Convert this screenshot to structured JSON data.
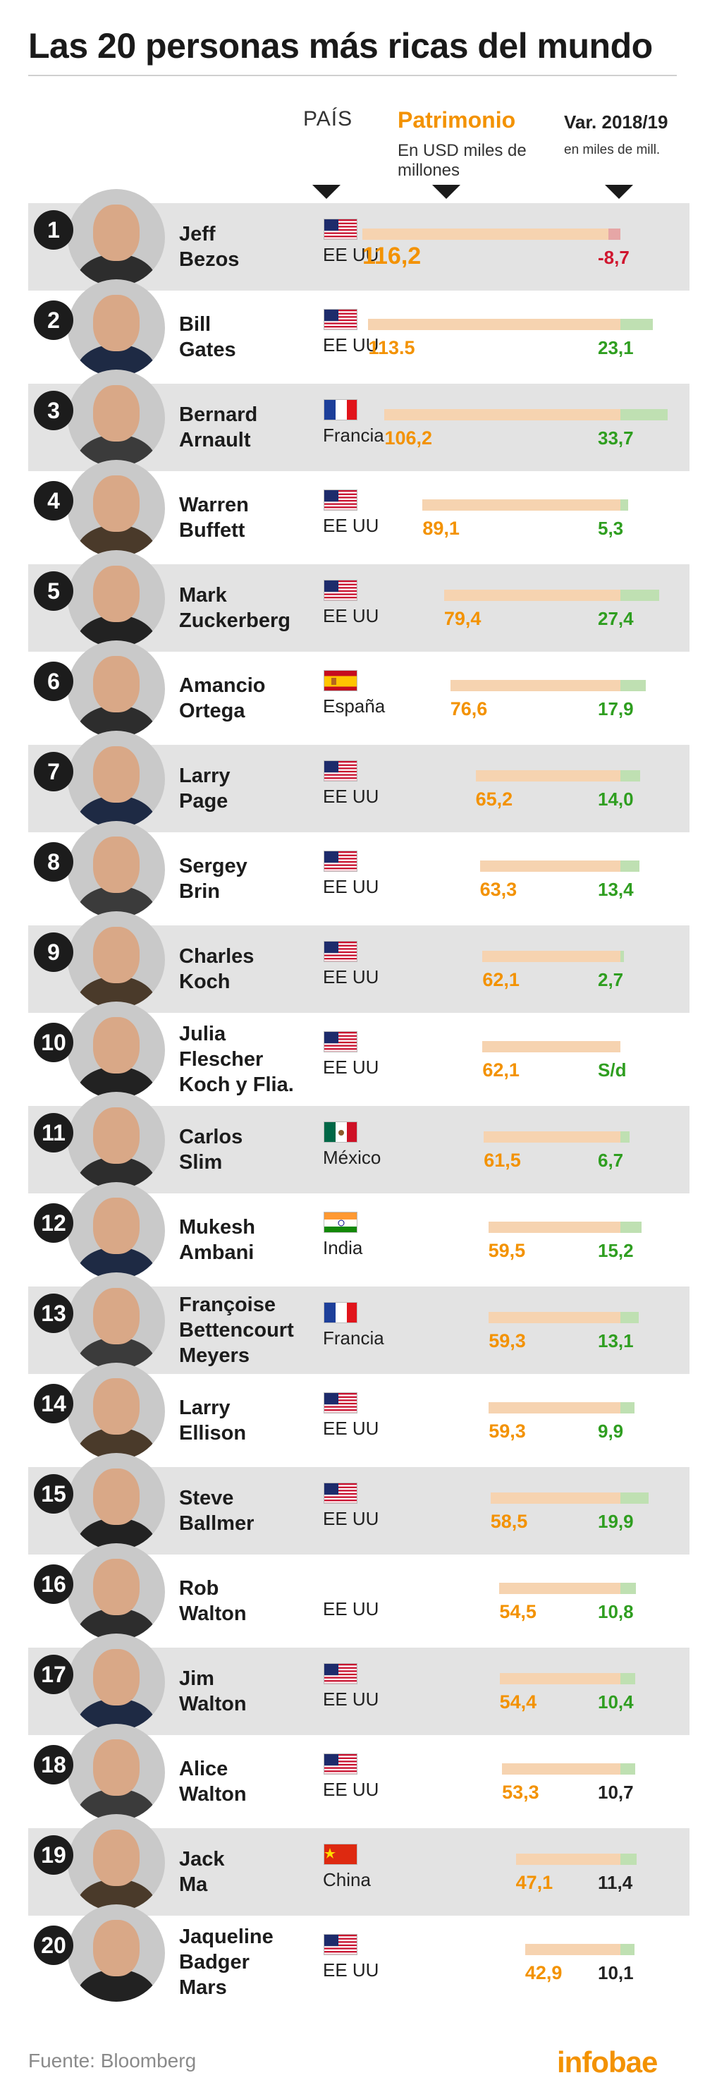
{
  "title": "Las 20 personas más ricas del mundo",
  "headers": {
    "country": "PAÍS",
    "net_worth": "Patrimonio",
    "net_worth_sub": "En USD miles de millones",
    "variation": "Var. 2018/19",
    "variation_sub": "en miles de mill."
  },
  "colors": {
    "accent": "#f39200",
    "positive": "#2f9e20",
    "negative": "#d0162f",
    "neutral": "#222222",
    "bar_net": "#f6d3b0",
    "bar_pos": "#bfe0b2",
    "bar_neg": "#e6a6a6",
    "row_shade": "#e3e3e3"
  },
  "chart_data": {
    "type": "bar",
    "title": "Las 20 personas más ricas del mundo",
    "series": [
      {
        "name": "Patrimonio",
        "unit": "USD miles de millones"
      },
      {
        "name": "Var. 2018/19",
        "unit": "miles de mill."
      }
    ],
    "rows": [
      {
        "rank": "1",
        "name": "Jeff\nBezos",
        "country": "EE UU",
        "flag": "us",
        "net_label": "116,2",
        "net": 116.2,
        "var_label": "-8,7",
        "var": -8.7,
        "var_color": "negative"
      },
      {
        "rank": "2",
        "name": "Bill\nGates",
        "country": "EE UU",
        "flag": "us",
        "net_label": "113.5",
        "net": 113.5,
        "var_label": "23,1",
        "var": 23.1,
        "var_color": "positive"
      },
      {
        "rank": "3",
        "name": "Bernard\nArnault",
        "country": "Francia",
        "flag": "fr",
        "net_label": "106,2",
        "net": 106.2,
        "var_label": "33,7",
        "var": 33.7,
        "var_color": "positive"
      },
      {
        "rank": "4",
        "name": "Warren\nBuffett",
        "country": "EE UU",
        "flag": "us",
        "net_label": "89,1",
        "net": 89.1,
        "var_label": "5,3",
        "var": 5.3,
        "var_color": "positive"
      },
      {
        "rank": "5",
        "name": "Mark\nZuckerberg",
        "country": "EE UU",
        "flag": "us",
        "net_label": "79,4",
        "net": 79.4,
        "var_label": "27,4",
        "var": 27.4,
        "var_color": "positive"
      },
      {
        "rank": "6",
        "name": "Amancio\nOrtega",
        "country": "España",
        "flag": "es",
        "net_label": "76,6",
        "net": 76.6,
        "var_label": "17,9",
        "var": 17.9,
        "var_color": "positive"
      },
      {
        "rank": "7",
        "name": "Larry\nPage",
        "country": "EE UU",
        "flag": "us",
        "net_label": "65,2",
        "net": 65.2,
        "var_label": "14,0",
        "var": 14.0,
        "var_color": "positive"
      },
      {
        "rank": "8",
        "name": "Sergey\nBrin",
        "country": "EE UU",
        "flag": "us",
        "net_label": "63,3",
        "net": 63.3,
        "var_label": "13,4",
        "var": 13.4,
        "var_color": "positive"
      },
      {
        "rank": "9",
        "name": "Charles\nKoch",
        "country": "EE UU",
        "flag": "us",
        "net_label": "62,1",
        "net": 62.1,
        "var_label": "2,7",
        "var": 2.7,
        "var_color": "positive"
      },
      {
        "rank": "10",
        "name": "Julia\nFlescher\nKoch y Flia.",
        "country": "EE UU",
        "flag": "us",
        "net_label": "62,1",
        "net": 62.1,
        "var_label": "S/d",
        "var": null,
        "var_color": "positive"
      },
      {
        "rank": "11",
        "name": "Carlos\nSlim",
        "country": "México",
        "flag": "mx",
        "net_label": "61,5",
        "net": 61.5,
        "var_label": "6,7",
        "var": 6.7,
        "var_color": "positive"
      },
      {
        "rank": "12",
        "name": "Mukesh\nAmbani",
        "country": "India",
        "flag": "in",
        "net_label": "59,5",
        "net": 59.5,
        "var_label": "15,2",
        "var": 15.2,
        "var_color": "positive"
      },
      {
        "rank": "13",
        "name": "Françoise\nBettencourt\nMeyers",
        "country": "Francia",
        "flag": "fr",
        "net_label": "59,3",
        "net": 59.3,
        "var_label": "13,1",
        "var": 13.1,
        "var_color": "positive"
      },
      {
        "rank": "14",
        "name": "Larry\nEllison",
        "country": "EE UU",
        "flag": "us",
        "net_label": "59,3",
        "net": 59.3,
        "var_label": "9,9",
        "var": 9.9,
        "var_color": "positive"
      },
      {
        "rank": "15",
        "name": "Steve\nBallmer",
        "country": "EE UU",
        "flag": "us",
        "net_label": "58,5",
        "net": 58.5,
        "var_label": "19,9",
        "var": 19.9,
        "var_color": "positive"
      },
      {
        "rank": "16",
        "name": "Rob\nWalton",
        "country": "EE UU",
        "flag": "none",
        "net_label": "54,5",
        "net": 54.5,
        "var_label": "10,8",
        "var": 10.8,
        "var_color": "positive"
      },
      {
        "rank": "17",
        "name": "Jim\nWalton",
        "country": "EE UU",
        "flag": "us",
        "net_label": "54,4",
        "net": 54.4,
        "var_label": "10,4",
        "var": 10.4,
        "var_color": "positive"
      },
      {
        "rank": "18",
        "name": "Alice\nWalton",
        "country": "EE UU",
        "flag": "us",
        "net_label": "53,3",
        "net": 53.3,
        "var_label": "10,7",
        "var": 10.7,
        "var_color": "neutral"
      },
      {
        "rank": "19",
        "name": "Jack\nMa",
        "country": "China",
        "flag": "cn",
        "net_label": "47,1",
        "net": 47.1,
        "var_label": "11,4",
        "var": 11.4,
        "var_color": "neutral"
      },
      {
        "rank": "20",
        "name": "Jaqueline\nBadger\nMars",
        "country": "EE UU",
        "flag": "us",
        "net_label": "42,9",
        "net": 42.9,
        "var_label": "10,1",
        "var": 10.1,
        "var_color": "neutral"
      }
    ]
  },
  "source": "Fuente: Bloomberg",
  "brand": "infobae"
}
